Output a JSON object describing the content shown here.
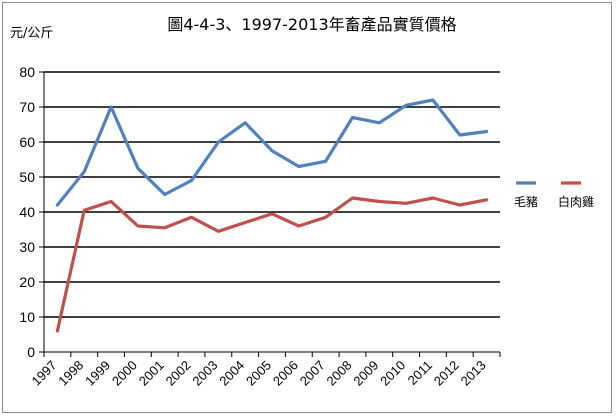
{
  "chart_data": {
    "type": "line",
    "title": "圖4-4-3、1997-2013年畜產品實質價格",
    "ylabel": "元/公斤",
    "xlabel": "",
    "ylim": [
      0,
      80
    ],
    "yticks": [
      "0",
      "10",
      "20",
      "30",
      "40",
      "50",
      "60",
      "70",
      "80"
    ],
    "categories": [
      "1997",
      "1998",
      "1999",
      "2000",
      "2001",
      "2002",
      "2003",
      "2004",
      "2005",
      "2006",
      "2007",
      "2008",
      "2009",
      "2010",
      "2011",
      "2012",
      "2013"
    ],
    "grid": true,
    "legend_position": "right",
    "series": [
      {
        "name": "毛豬",
        "color": "#4f81bd",
        "values": [
          42,
          51.5,
          70,
          52.5,
          45,
          49,
          60,
          65.5,
          57.5,
          53,
          54.5,
          67,
          65.5,
          70.5,
          72,
          62,
          63
        ]
      },
      {
        "name": "白肉雞",
        "color": "#c0504d",
        "values": [
          6,
          40.5,
          43,
          36,
          35.5,
          38.5,
          34.5,
          37,
          39.5,
          36,
          38.5,
          44,
          43,
          42.5,
          44,
          42,
          43.5
        ]
      }
    ]
  }
}
